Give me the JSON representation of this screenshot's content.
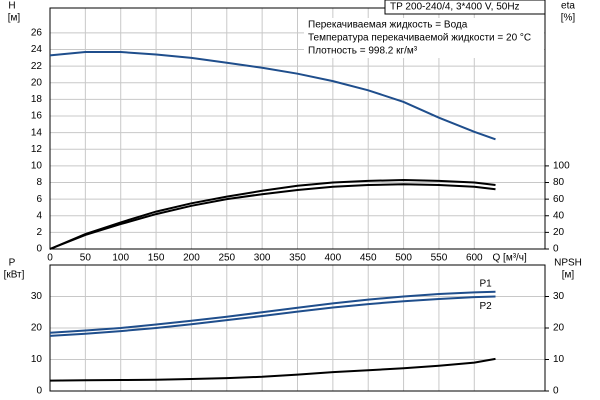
{
  "chart_data": [
    {
      "type": "line",
      "model": "TP 200-240/4, 3*400 V, 50Hz",
      "notes": [
        "Перекачиваемая жидкость = Вода",
        "Температура перекачиваемой жидкости = 20 °C",
        "Плотность = 998.2 кг/м³"
      ],
      "ylabel": "H",
      "yunit": "[м]",
      "y2label": "eta",
      "y2unit": "[%]",
      "xlabel": "Q [м³/ч]",
      "x": [
        0,
        50,
        100,
        150,
        200,
        250,
        300,
        350,
        400,
        450,
        500,
        550,
        600,
        630
      ],
      "xlim": [
        0,
        700
      ],
      "xticks": [
        0,
        50,
        100,
        150,
        200,
        250,
        300,
        350,
        400,
        450,
        500,
        550,
        600
      ],
      "ylim": [
        0,
        29
      ],
      "yticks": [
        0,
        2,
        4,
        6,
        8,
        10,
        12,
        14,
        16,
        18,
        20,
        22,
        24,
        26
      ],
      "y2lim": [
        0,
        290
      ],
      "y2ticks": [
        0,
        20,
        40,
        60,
        80,
        100
      ],
      "grid": true,
      "series": [
        {
          "color": "#1f4e8c",
          "values": [
            23.3,
            23.7,
            23.7,
            23.4,
            23.0,
            22.4,
            21.8,
            21.1,
            20.2,
            19.1,
            17.7,
            15.8,
            14.1,
            13.2
          ]
        },
        {
          "color": "#000000",
          "axis": "y2",
          "values": [
            0,
            18,
            32,
            45,
            55,
            63,
            70,
            76,
            80,
            82,
            83,
            82,
            80,
            77
          ]
        },
        {
          "color": "#000000",
          "axis": "y2",
          "values": [
            0,
            17,
            30,
            42,
            52,
            60,
            66,
            71,
            75,
            77,
            78,
            77,
            75,
            72
          ]
        }
      ]
    },
    {
      "type": "line",
      "ylabel": "P",
      "yunit": "[кВт]",
      "y2label": "NPSH",
      "y2unit": "[м]",
      "x": [
        0,
        50,
        100,
        150,
        200,
        250,
        300,
        350,
        400,
        450,
        500,
        550,
        600,
        630
      ],
      "xlim": [
        0,
        700
      ],
      "ylim": [
        0,
        40
      ],
      "yticks": [
        0,
        10,
        20,
        30
      ],
      "y2lim": [
        0,
        40
      ],
      "y2ticks": [
        0,
        10,
        20,
        30
      ],
      "grid": true,
      "series": [
        {
          "name": "P1",
          "color": "#1f4e8c",
          "values": [
            18.5,
            19.2,
            20.0,
            21.1,
            22.3,
            23.6,
            25.0,
            26.4,
            27.8,
            29.0,
            30.0,
            30.8,
            31.3,
            31.5
          ]
        },
        {
          "name": "P2",
          "color": "#1f4e8c",
          "values": [
            17.5,
            18.2,
            19.0,
            20.0,
            21.2,
            22.5,
            23.8,
            25.2,
            26.5,
            27.6,
            28.5,
            29.2,
            29.8,
            30.0
          ]
        },
        {
          "color": "#000000",
          "axis": "y2",
          "values": [
            3.3,
            3.4,
            3.5,
            3.6,
            3.8,
            4.1,
            4.5,
            5.2,
            6.0,
            6.6,
            7.2,
            8.0,
            9.0,
            10.2
          ]
        }
      ]
    }
  ]
}
